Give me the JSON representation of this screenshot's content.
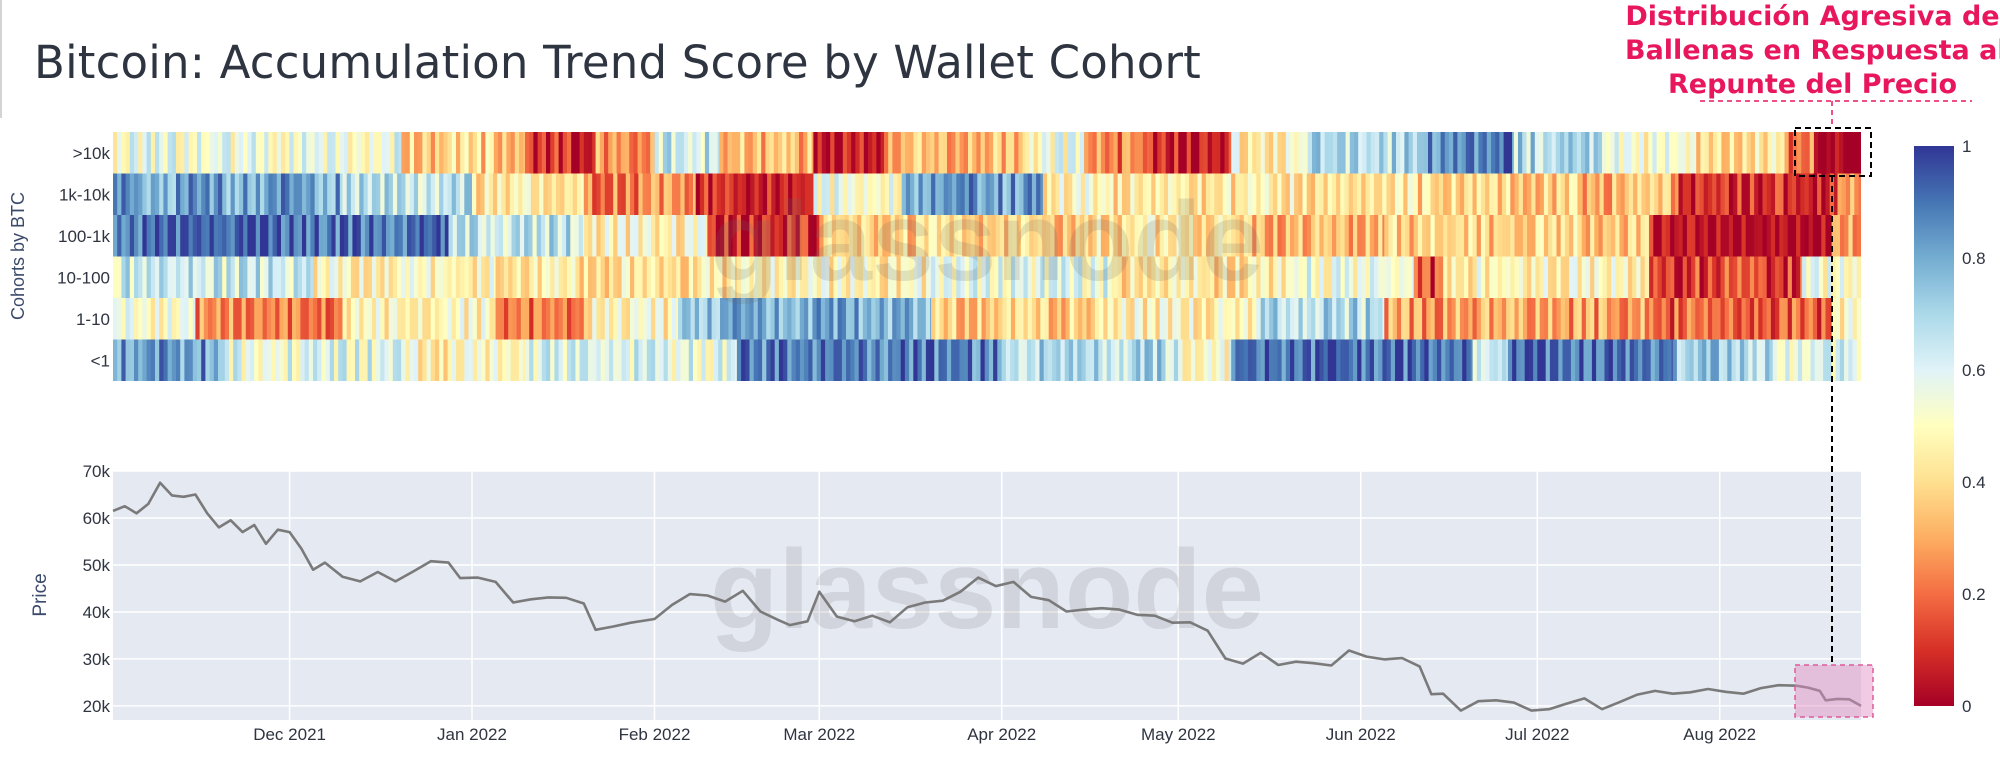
{
  "title": "Bitcoin: Accumulation Trend Score by Wallet Cohort",
  "annotation": {
    "lines": [
      "Distribución Agresiva de",
      "Ballenas en Respuesta al",
      "Repunte del Precio"
    ],
    "color": "#e8175d"
  },
  "watermark": "glassnode",
  "chart_data": [
    {
      "type": "heatmap",
      "ylabel": "Cohorts by BTC",
      "rows": [
        ">10k",
        "1k-10k",
        "100-1k",
        "10-100",
        "1-10",
        "<1"
      ],
      "colorscale": {
        "name": "RdYlBu",
        "range": [
          0,
          1
        ],
        "ticks": [
          "0",
          "0.2",
          "0.4",
          "0.6",
          "0.8",
          "1"
        ],
        "stops": [
          "#a50026",
          "#d73027",
          "#f46d43",
          "#fdae61",
          "#fee090",
          "#ffffbf",
          "#e0f3f8",
          "#abd9e9",
          "#74add1",
          "#4575b4",
          "#313695"
        ]
      },
      "x_range": [
        "2021-11-01",
        "2022-08-25"
      ],
      "segments": {
        ">10k": [
          {
            "from": "2021-11-01",
            "to": "2021-12-20",
            "value": 0.62
          },
          {
            "from": "2021-12-20",
            "to": "2022-01-10",
            "value": 0.45
          },
          {
            "from": "2022-01-10",
            "to": "2022-01-22",
            "value": 0.15
          },
          {
            "from": "2022-01-22",
            "to": "2022-02-01",
            "value": 0.35
          },
          {
            "from": "2022-02-01",
            "to": "2022-02-12",
            "value": 0.7
          },
          {
            "from": "2022-02-12",
            "to": "2022-02-28",
            "value": 0.4
          },
          {
            "from": "2022-02-28",
            "to": "2022-03-12",
            "value": 0.1
          },
          {
            "from": "2022-03-12",
            "to": "2022-04-05",
            "value": 0.4
          },
          {
            "from": "2022-04-05",
            "to": "2022-04-15",
            "value": 0.6
          },
          {
            "from": "2022-04-15",
            "to": "2022-04-26",
            "value": 0.3
          },
          {
            "from": "2022-04-26",
            "to": "2022-05-10",
            "value": 0.12
          },
          {
            "from": "2022-05-10",
            "to": "2022-05-23",
            "value": 0.55
          },
          {
            "from": "2022-05-23",
            "to": "2022-06-11",
            "value": 0.75
          },
          {
            "from": "2022-06-11",
            "to": "2022-06-27",
            "value": 0.95
          },
          {
            "from": "2022-06-27",
            "to": "2022-07-12",
            "value": 0.75
          },
          {
            "from": "2022-07-12",
            "to": "2022-07-28",
            "value": 0.6
          },
          {
            "from": "2022-07-28",
            "to": "2022-08-12",
            "value": 0.5
          },
          {
            "from": "2022-08-12",
            "to": "2022-08-17",
            "value": 0.3
          },
          {
            "from": "2022-08-17",
            "to": "2022-08-25",
            "value": 0.02
          }
        ],
        "1k-10k": [
          {
            "from": "2021-11-01",
            "to": "2021-12-10",
            "value": 0.88
          },
          {
            "from": "2021-12-10",
            "to": "2022-01-01",
            "value": 0.72
          },
          {
            "from": "2022-01-01",
            "to": "2022-01-20",
            "value": 0.5
          },
          {
            "from": "2022-01-20",
            "to": "2022-02-08",
            "value": 0.3
          },
          {
            "from": "2022-02-08",
            "to": "2022-02-28",
            "value": 0.15
          },
          {
            "from": "2022-02-28",
            "to": "2022-03-15",
            "value": 0.6
          },
          {
            "from": "2022-03-15",
            "to": "2022-04-08",
            "value": 0.9
          },
          {
            "from": "2022-04-08",
            "to": "2022-04-20",
            "value": 0.55
          },
          {
            "from": "2022-04-20",
            "to": "2022-06-10",
            "value": 0.5
          },
          {
            "from": "2022-06-10",
            "to": "2022-07-08",
            "value": 0.45
          },
          {
            "from": "2022-07-08",
            "to": "2022-07-25",
            "value": 0.4
          },
          {
            "from": "2022-07-25",
            "to": "2022-08-21",
            "value": 0.15
          },
          {
            "from": "2022-08-21",
            "to": "2022-08-25",
            "value": 0.35
          }
        ],
        "100-1k": [
          {
            "from": "2021-11-01",
            "to": "2021-12-28",
            "value": 0.97
          },
          {
            "from": "2021-12-28",
            "to": "2022-01-20",
            "value": 0.72
          },
          {
            "from": "2022-01-20",
            "to": "2022-02-10",
            "value": 0.55
          },
          {
            "from": "2022-02-10",
            "to": "2022-03-01",
            "value": 0.15
          },
          {
            "from": "2022-03-01",
            "to": "2022-04-15",
            "value": 0.45
          },
          {
            "from": "2022-04-15",
            "to": "2022-05-10",
            "value": 0.5
          },
          {
            "from": "2022-05-10",
            "to": "2022-06-05",
            "value": 0.4
          },
          {
            "from": "2022-06-05",
            "to": "2022-07-20",
            "value": 0.45
          },
          {
            "from": "2022-07-20",
            "to": "2022-08-20",
            "value": 0.1
          },
          {
            "from": "2022-08-20",
            "to": "2022-08-25",
            "value": 0.35
          }
        ],
        "10-100": [
          {
            "from": "2021-11-01",
            "to": "2021-12-05",
            "value": 0.7
          },
          {
            "from": "2021-12-05",
            "to": "2022-01-05",
            "value": 0.55
          },
          {
            "from": "2022-01-05",
            "to": "2022-02-15",
            "value": 0.5
          },
          {
            "from": "2022-02-15",
            "to": "2022-03-20",
            "value": 0.55
          },
          {
            "from": "2022-03-20",
            "to": "2022-04-20",
            "value": 0.65
          },
          {
            "from": "2022-04-20",
            "to": "2022-05-20",
            "value": 0.5
          },
          {
            "from": "2022-05-20",
            "to": "2022-06-10",
            "value": 0.62
          },
          {
            "from": "2022-06-10",
            "to": "2022-06-15",
            "value": 0.2
          },
          {
            "from": "2022-06-15",
            "to": "2022-07-20",
            "value": 0.55
          },
          {
            "from": "2022-07-20",
            "to": "2022-08-15",
            "value": 0.2
          },
          {
            "from": "2022-08-15",
            "to": "2022-08-25",
            "value": 0.6
          }
        ],
        "1-10": [
          {
            "from": "2021-11-01",
            "to": "2021-11-15",
            "value": 0.6
          },
          {
            "from": "2021-11-15",
            "to": "2021-12-10",
            "value": 0.3
          },
          {
            "from": "2021-12-10",
            "to": "2022-01-05",
            "value": 0.55
          },
          {
            "from": "2022-01-05",
            "to": "2022-01-20",
            "value": 0.3
          },
          {
            "from": "2022-01-20",
            "to": "2022-02-05",
            "value": 0.55
          },
          {
            "from": "2022-02-05",
            "to": "2022-03-20",
            "value": 0.85
          },
          {
            "from": "2022-03-20",
            "to": "2022-04-20",
            "value": 0.45
          },
          {
            "from": "2022-04-20",
            "to": "2022-05-15",
            "value": 0.55
          },
          {
            "from": "2022-05-15",
            "to": "2022-06-05",
            "value": 0.75
          },
          {
            "from": "2022-06-05",
            "to": "2022-07-20",
            "value": 0.35
          },
          {
            "from": "2022-07-20",
            "to": "2022-08-20",
            "value": 0.25
          },
          {
            "from": "2022-08-20",
            "to": "2022-08-25",
            "value": 0.55
          }
        ],
        "<1": [
          {
            "from": "2021-11-01",
            "to": "2021-11-20",
            "value": 0.9
          },
          {
            "from": "2021-11-20",
            "to": "2021-12-20",
            "value": 0.65
          },
          {
            "from": "2021-12-20",
            "to": "2022-01-10",
            "value": 0.55
          },
          {
            "from": "2022-01-10",
            "to": "2022-02-15",
            "value": 0.65
          },
          {
            "from": "2022-02-15",
            "to": "2022-04-01",
            "value": 0.95
          },
          {
            "from": "2022-04-01",
            "to": "2022-05-01",
            "value": 0.75
          },
          {
            "from": "2022-05-01",
            "to": "2022-05-10",
            "value": 0.6
          },
          {
            "from": "2022-05-10",
            "to": "2022-06-20",
            "value": 0.98
          },
          {
            "from": "2022-06-20",
            "to": "2022-06-26",
            "value": 0.7
          },
          {
            "from": "2022-06-26",
            "to": "2022-07-24",
            "value": 0.98
          },
          {
            "from": "2022-07-24",
            "to": "2022-08-10",
            "value": 0.78
          },
          {
            "from": "2022-08-10",
            "to": "2022-08-25",
            "value": 0.65
          }
        ]
      }
    },
    {
      "type": "line",
      "ylabel": "Price",
      "yticks": [
        "20k",
        "30k",
        "40k",
        "50k",
        "60k",
        "70k"
      ],
      "ylim": [
        17000,
        70000
      ],
      "x_ticks": [
        {
          "date": "2021-12-01",
          "label": "Dec 2021"
        },
        {
          "date": "2022-01-01",
          "label": "Jan 2022"
        },
        {
          "date": "2022-02-01",
          "label": "Feb 2022"
        },
        {
          "date": "2022-03-01",
          "label": "Mar 2022"
        },
        {
          "date": "2022-04-01",
          "label": "Apr 2022"
        },
        {
          "date": "2022-05-01",
          "label": "May 2022"
        },
        {
          "date": "2022-06-01",
          "label": "Jun 2022"
        },
        {
          "date": "2022-07-01",
          "label": "Jul 2022"
        },
        {
          "date": "2022-08-01",
          "label": "Aug 2022"
        }
      ],
      "x_range": [
        "2021-11-01",
        "2022-08-25"
      ],
      "line_color": "#7a7a7a",
      "background": "#e5e9f2",
      "points": [
        [
          "2021-11-01",
          61500
        ],
        [
          "2021-11-03",
          62500
        ],
        [
          "2021-11-05",
          61000
        ],
        [
          "2021-11-07",
          63000
        ],
        [
          "2021-11-09",
          67500
        ],
        [
          "2021-11-11",
          64800
        ],
        [
          "2021-11-13",
          64500
        ],
        [
          "2021-11-15",
          65000
        ],
        [
          "2021-11-17",
          61000
        ],
        [
          "2021-11-19",
          58000
        ],
        [
          "2021-11-21",
          59500
        ],
        [
          "2021-11-23",
          57000
        ],
        [
          "2021-11-25",
          58500
        ],
        [
          "2021-11-27",
          54500
        ],
        [
          "2021-11-29",
          57500
        ],
        [
          "2021-12-01",
          57000
        ],
        [
          "2021-12-03",
          53500
        ],
        [
          "2021-12-05",
          49000
        ],
        [
          "2021-12-07",
          50500
        ],
        [
          "2021-12-10",
          47500
        ],
        [
          "2021-12-13",
          46500
        ],
        [
          "2021-12-16",
          48500
        ],
        [
          "2021-12-19",
          46500
        ],
        [
          "2021-12-22",
          48600
        ],
        [
          "2021-12-25",
          50800
        ],
        [
          "2021-12-28",
          50500
        ],
        [
          "2021-12-30",
          47200
        ],
        [
          "2022-01-02",
          47300
        ],
        [
          "2022-01-05",
          46400
        ],
        [
          "2022-01-08",
          42000
        ],
        [
          "2022-01-11",
          42700
        ],
        [
          "2022-01-14",
          43100
        ],
        [
          "2022-01-17",
          43000
        ],
        [
          "2022-01-20",
          41800
        ],
        [
          "2022-01-22",
          36200
        ],
        [
          "2022-01-25",
          36900
        ],
        [
          "2022-01-28",
          37700
        ],
        [
          "2022-02-01",
          38500
        ],
        [
          "2022-02-04",
          41500
        ],
        [
          "2022-02-07",
          43800
        ],
        [
          "2022-02-10",
          43500
        ],
        [
          "2022-02-13",
          42200
        ],
        [
          "2022-02-16",
          44500
        ],
        [
          "2022-02-19",
          40100
        ],
        [
          "2022-02-22",
          38300
        ],
        [
          "2022-02-24",
          37200
        ],
        [
          "2022-02-27",
          38000
        ],
        [
          "2022-03-01",
          44300
        ],
        [
          "2022-03-04",
          39000
        ],
        [
          "2022-03-07",
          38000
        ],
        [
          "2022-03-10",
          39200
        ],
        [
          "2022-03-13",
          37800
        ],
        [
          "2022-03-16",
          41000
        ],
        [
          "2022-03-19",
          42000
        ],
        [
          "2022-03-22",
          42400
        ],
        [
          "2022-03-25",
          44300
        ],
        [
          "2022-03-28",
          47300
        ],
        [
          "2022-03-31",
          45500
        ],
        [
          "2022-04-03",
          46400
        ],
        [
          "2022-04-06",
          43200
        ],
        [
          "2022-04-09",
          42500
        ],
        [
          "2022-04-12",
          40100
        ],
        [
          "2022-04-15",
          40500
        ],
        [
          "2022-04-18",
          40800
        ],
        [
          "2022-04-21",
          40500
        ],
        [
          "2022-04-24",
          39400
        ],
        [
          "2022-04-27",
          39200
        ],
        [
          "2022-04-30",
          37700
        ],
        [
          "2022-05-03",
          37800
        ],
        [
          "2022-05-06",
          36000
        ],
        [
          "2022-05-09",
          30100
        ],
        [
          "2022-05-12",
          29000
        ],
        [
          "2022-05-15",
          31300
        ],
        [
          "2022-05-18",
          28700
        ],
        [
          "2022-05-21",
          29400
        ],
        [
          "2022-05-24",
          29100
        ],
        [
          "2022-05-27",
          28600
        ],
        [
          "2022-05-30",
          31800
        ],
        [
          "2022-06-02",
          30500
        ],
        [
          "2022-06-05",
          29900
        ],
        [
          "2022-06-08",
          30200
        ],
        [
          "2022-06-11",
          28400
        ],
        [
          "2022-06-13",
          22500
        ],
        [
          "2022-06-15",
          22600
        ],
        [
          "2022-06-18",
          19000
        ],
        [
          "2022-06-21",
          21000
        ],
        [
          "2022-06-24",
          21200
        ],
        [
          "2022-06-27",
          20700
        ],
        [
          "2022-06-30",
          19000
        ],
        [
          "2022-07-03",
          19300
        ],
        [
          "2022-07-06",
          20500
        ],
        [
          "2022-07-09",
          21600
        ],
        [
          "2022-07-12",
          19300
        ],
        [
          "2022-07-15",
          20800
        ],
        [
          "2022-07-18",
          22400
        ],
        [
          "2022-07-21",
          23200
        ],
        [
          "2022-07-24",
          22600
        ],
        [
          "2022-07-27",
          22900
        ],
        [
          "2022-07-30",
          23600
        ],
        [
          "2022-08-02",
          23000
        ],
        [
          "2022-08-05",
          22600
        ],
        [
          "2022-08-08",
          23800
        ],
        [
          "2022-08-11",
          24400
        ],
        [
          "2022-08-14",
          24300
        ],
        [
          "2022-08-16",
          23900
        ],
        [
          "2022-08-18",
          23200
        ],
        [
          "2022-08-19",
          21200
        ],
        [
          "2022-08-21",
          21500
        ],
        [
          "2022-08-23",
          21400
        ],
        [
          "2022-08-25",
          20000
        ]
      ]
    }
  ]
}
